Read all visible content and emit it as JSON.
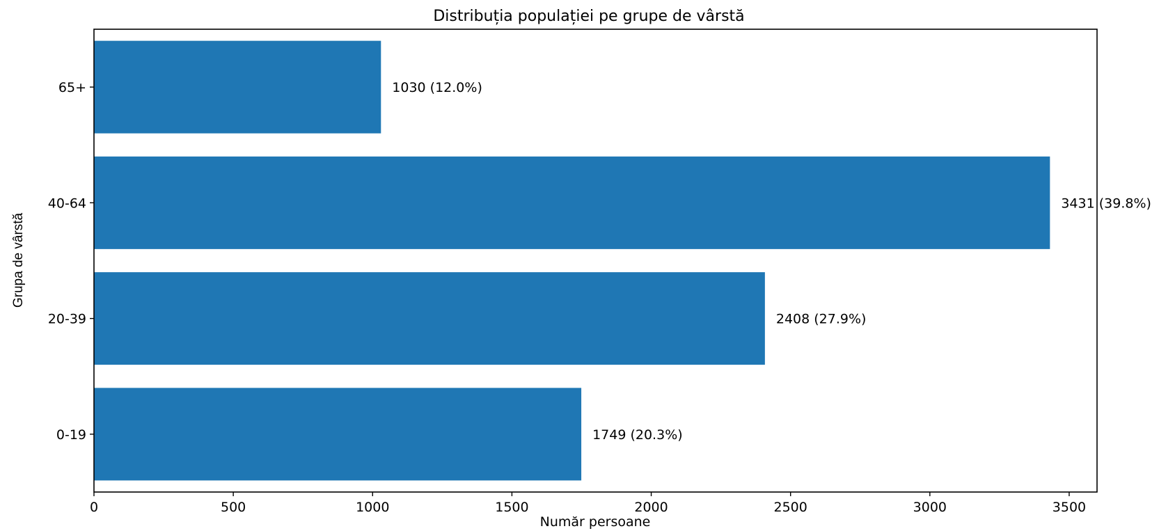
{
  "chart_data": {
    "type": "bar",
    "orientation": "horizontal",
    "title": "Distribuția populației pe grupe de vârstă",
    "xlabel": "Număr persoane",
    "ylabel": "Grupa de vârstă",
    "categories": [
      "0-19",
      "20-39",
      "40-64",
      "65+"
    ],
    "values": [
      1749,
      2408,
      3431,
      1030
    ],
    "bar_labels": [
      "1749 (20.3%)",
      "2408 (27.9%)",
      "3431 (39.8%)",
      "1030 (12.0%)"
    ],
    "xlim": [
      0,
      3600
    ],
    "xticks": [
      0,
      500,
      1000,
      1500,
      2000,
      2500,
      3000,
      3500
    ],
    "xtick_labels": [
      "0",
      "500",
      "1000",
      "1500",
      "2000",
      "2500",
      "3000",
      "3500"
    ],
    "bar_color": "#1f77b4",
    "grid": false,
    "legend": "none"
  }
}
